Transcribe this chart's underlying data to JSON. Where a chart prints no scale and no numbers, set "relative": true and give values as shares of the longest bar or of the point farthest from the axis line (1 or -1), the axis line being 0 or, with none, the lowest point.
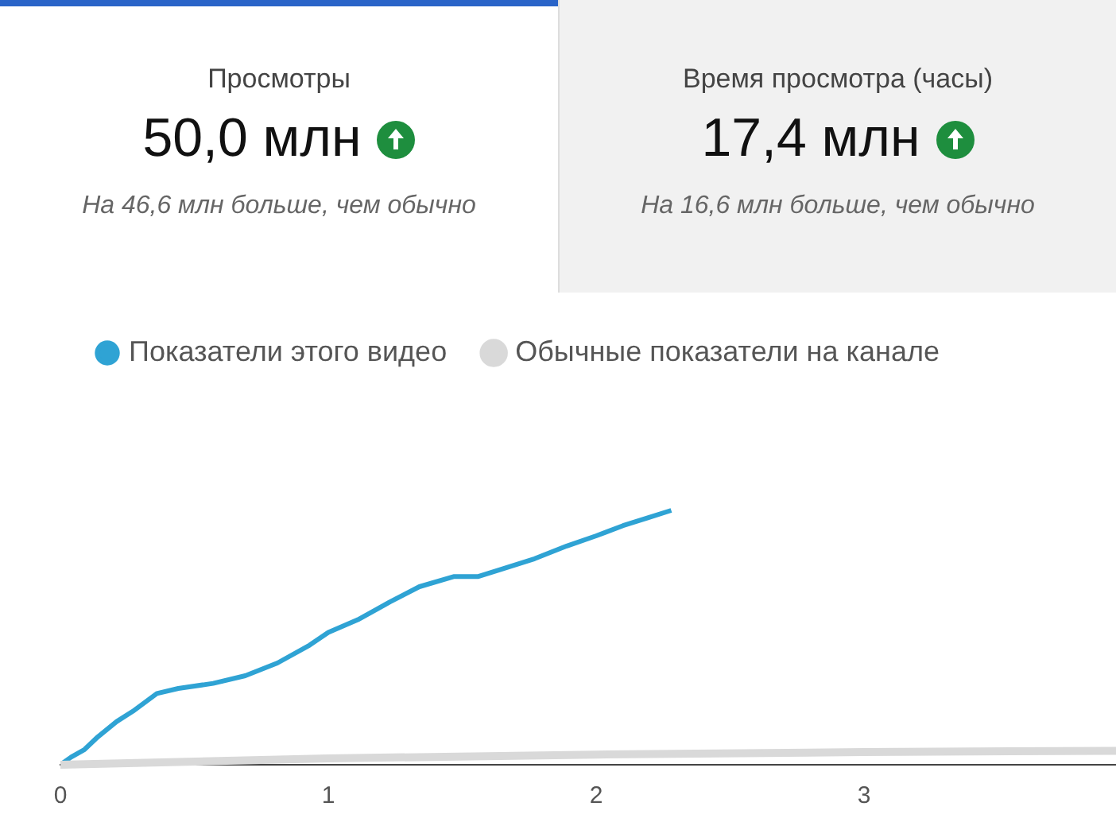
{
  "chart_data": {
    "type": "line",
    "relative": true,
    "annotations": [
      "Просмотры",
      "50,0 млн",
      "На 46,6 млн больше, чем обычно",
      "Время просмотра (часы)",
      "17,4 млн",
      "На 16,6 млн больше, чем обычно"
    ],
    "xlim": [
      0,
      3.94
    ],
    "xticks": [
      0,
      1,
      2,
      3
    ],
    "series": [
      {
        "name": "Показатели этого видео",
        "color": "#2fa3d4",
        "x": [
          0,
          0.04,
          0.09,
          0.14,
          0.21,
          0.27,
          0.36,
          0.44,
          0.57,
          0.69,
          0.81,
          0.93,
          1.0,
          1.11,
          1.23,
          1.34,
          1.47,
          1.56,
          1.65,
          1.77,
          1.89,
          2.0,
          2.1,
          2.19,
          2.28
        ],
        "values": [
          0,
          0.03,
          0.06,
          0.11,
          0.17,
          0.21,
          0.28,
          0.3,
          0.32,
          0.35,
          0.4,
          0.47,
          0.52,
          0.57,
          0.64,
          0.7,
          0.74,
          0.74,
          0.77,
          0.81,
          0.86,
          0.9,
          0.94,
          0.97,
          1.0
        ]
      },
      {
        "name": "Обычные показатели на канале",
        "color": "#d9d9d9",
        "x": [
          0,
          1,
          2,
          3,
          3.94
        ],
        "values": [
          0,
          0.025,
          0.04,
          0.05,
          0.055
        ]
      }
    ],
    "legend": "top left",
    "marker": "none",
    "line_style": "solid"
  }
}
